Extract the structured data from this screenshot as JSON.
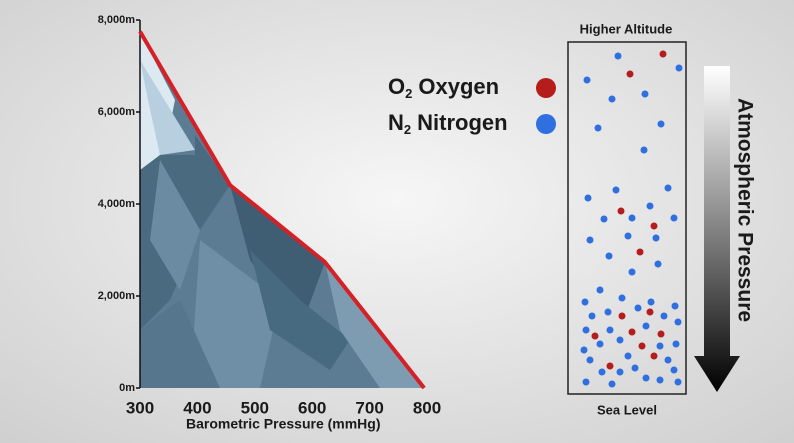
{
  "chart_data": {
    "type": "line",
    "x": [
      300,
      457,
      622,
      795
    ],
    "series": [
      {
        "color": "#d42026",
        "values": [
          7750,
          4410,
          2740,
          0
        ]
      }
    ],
    "xlim": [
      300,
      800
    ],
    "ylim": [
      0,
      8000
    ],
    "xticks": [
      300,
      400,
      500,
      600,
      700,
      800
    ],
    "yticks": [
      {
        "value": 0,
        "label": "0m"
      },
      {
        "value": 2000,
        "label": "2,000m"
      },
      {
        "value": 4000,
        "label": "4,000m"
      },
      {
        "value": 6000,
        "label": "6,000m"
      },
      {
        "value": 8000,
        "label": "8,000m"
      }
    ],
    "x_label": "Barometric Pressure (mmHg)"
  },
  "panel": {
    "top_label": "Higher Altitude",
    "bottom_label": "Sea Level",
    "arrow_label": "Atmospheric Pressure",
    "legend": [
      {
        "symbol": "O",
        "subscript": "2",
        "name": "Oxygen",
        "color": "#b51c1c"
      },
      {
        "symbol": "N",
        "subscript": "2",
        "name": "Nitrogen",
        "color": "#2f6fe0"
      }
    ]
  }
}
